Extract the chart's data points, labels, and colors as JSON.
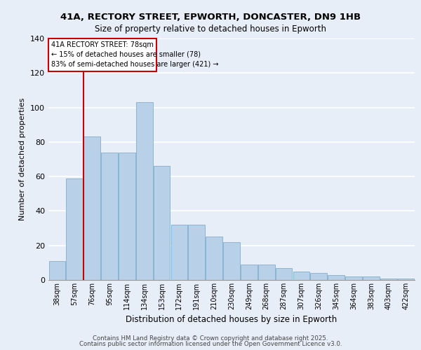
{
  "title1": "41A, RECTORY STREET, EPWORTH, DONCASTER, DN9 1HB",
  "title2": "Size of property relative to detached houses in Epworth",
  "xlabel": "Distribution of detached houses by size in Epworth",
  "ylabel": "Number of detached properties",
  "categories": [
    "38sqm",
    "57sqm",
    "76sqm",
    "95sqm",
    "114sqm",
    "134sqm",
    "153sqm",
    "172sqm",
    "191sqm",
    "210sqm",
    "230sqm",
    "249sqm",
    "268sqm",
    "287sqm",
    "307sqm",
    "326sqm",
    "345sqm",
    "364sqm",
    "383sqm",
    "403sqm",
    "422sqm"
  ],
  "values": [
    11,
    59,
    83,
    74,
    74,
    103,
    66,
    32,
    32,
    25,
    22,
    9,
    9,
    7,
    5,
    4,
    3,
    2,
    2,
    1,
    1
  ],
  "bar_color": "#b8d0e8",
  "bar_edge_color": "#8ab4d4",
  "background_color": "#e8eef8",
  "plot_background": "#e8eef8",
  "grid_color": "#ffffff",
  "property_label": "41A RECTORY STREET: 78sqm",
  "annotation_line1": "← 15% of detached houses are smaller (78)",
  "annotation_line2": "83% of semi-detached houses are larger (421) →",
  "red_line_color": "#cc0000",
  "annotation_box_color": "#cc0000",
  "ylim": [
    0,
    140
  ],
  "yticks": [
    0,
    20,
    40,
    60,
    80,
    100,
    120,
    140
  ],
  "red_line_x": 1.5,
  "footer1": "Contains HM Land Registry data © Crown copyright and database right 2025.",
  "footer2": "Contains public sector information licensed under the Open Government Licence v3.0."
}
